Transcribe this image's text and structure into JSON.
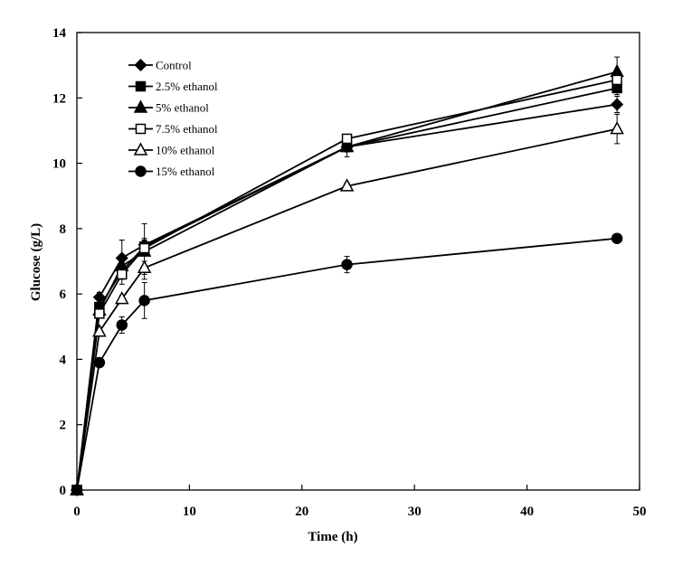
{
  "chart_data": {
    "type": "line",
    "title": "",
    "xlabel": "Time (h)",
    "ylabel": "Glucose (g/L)",
    "xlim": [
      0,
      50
    ],
    "ylim": [
      0,
      14
    ],
    "xticks": [
      0,
      10,
      20,
      30,
      40,
      50
    ],
    "yticks": [
      0,
      2,
      4,
      6,
      8,
      10,
      12,
      14
    ],
    "grid": false,
    "legend_position": "top-left",
    "x": [
      0,
      2,
      4,
      6,
      24,
      48
    ],
    "series": [
      {
        "name": "Control",
        "marker": "diamond-filled",
        "values": [
          0,
          5.9,
          7.1,
          7.5,
          10.5,
          11.8
        ],
        "errors": [
          0,
          0.15,
          0.55,
          0.2,
          0.15,
          0.25
        ]
      },
      {
        "name": "2.5% ethanol",
        "marker": "square-filled",
        "values": [
          0,
          5.6,
          6.7,
          7.45,
          10.5,
          12.3
        ],
        "errors": [
          0,
          0.1,
          0.25,
          0.2,
          0.15,
          0.2
        ]
      },
      {
        "name": "5% ethanol",
        "marker": "triangle-filled",
        "values": [
          0,
          5.5,
          6.85,
          7.3,
          10.5,
          12.8
        ],
        "errors": [
          0,
          0.1,
          0.3,
          0.85,
          0.3,
          0.45
        ]
      },
      {
        "name": "7.5% ethanol",
        "marker": "square-open",
        "values": [
          0,
          5.4,
          6.6,
          7.4,
          10.75,
          12.55
        ],
        "errors": [
          0,
          0.1,
          0.3,
          0.2,
          0.1,
          0.15
        ]
      },
      {
        "name": "10% ethanol",
        "marker": "triangle-open",
        "values": [
          0,
          4.85,
          5.85,
          6.8,
          9.3,
          11.05
        ],
        "errors": [
          0,
          0.1,
          0.1,
          0.2,
          0.1,
          0.45
        ]
      },
      {
        "name": "15% ethanol",
        "marker": "circle-filled",
        "values": [
          0,
          3.9,
          5.05,
          5.8,
          6.9,
          7.7
        ],
        "errors": [
          0,
          0.1,
          0.25,
          0.55,
          0.25,
          0.1
        ]
      }
    ]
  }
}
